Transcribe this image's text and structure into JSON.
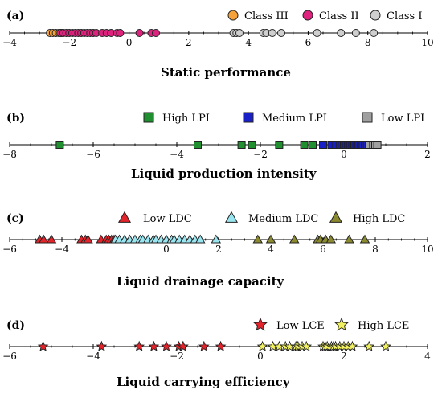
{
  "chart_data": [
    {
      "type": "scatter",
      "panel_label": "(a)",
      "title": "Static performance",
      "xlim": [
        -4,
        10
      ],
      "ticks": [
        -4,
        -2,
        0,
        2,
        4,
        6,
        8,
        10
      ],
      "tick_labels": [
        "−4",
        "−2",
        "0",
        "2",
        "4",
        "6",
        "8",
        "10"
      ],
      "marker": "circle",
      "legend_position": "top-right",
      "series": [
        {
          "name": "Class III",
          "color": "#f5a23a",
          "x": [
            -2.65,
            -2.55,
            -2.45,
            -2.35,
            -2.25
          ]
        },
        {
          "name": "Class II",
          "color": "#e0227f",
          "x": [
            -2.3,
            -2.2,
            -2.1,
            -2.0,
            -1.9,
            -1.8,
            -1.7,
            -1.6,
            -1.5,
            -1.4,
            -1.3,
            -1.2,
            -1.1,
            -0.9,
            -0.75,
            -0.6,
            -0.4,
            -0.3,
            0.35,
            0.75,
            0.9
          ]
        },
        {
          "name": "Class I",
          "color": "#cfcfcf",
          "x": [
            3.5,
            3.6,
            3.7,
            4.5,
            4.6,
            4.8,
            5.1,
            6.3,
            7.1,
            7.6,
            8.2
          ]
        }
      ]
    },
    {
      "type": "scatter",
      "panel_label": "(b)",
      "title": "Liquid production intensity",
      "xlim": [
        -8,
        2
      ],
      "ticks": [
        -8,
        -6,
        -4,
        -2,
        0,
        2
      ],
      "tick_labels": [
        "−8",
        "−6",
        "−4",
        "−2",
        "0",
        "2"
      ],
      "marker": "square",
      "legend_position": "top",
      "series": [
        {
          "name": "High LPI",
          "color": "#1f8f2f",
          "x": [
            -6.8,
            -3.5,
            -2.45,
            -2.2,
            -1.55,
            -0.95,
            -0.75
          ]
        },
        {
          "name": "Medium LPI",
          "color": "#1a20c8",
          "x": [
            -0.5,
            -0.3,
            -0.2,
            -0.1,
            -0.05,
            0.0,
            0.05,
            0.1,
            0.15,
            0.2,
            0.25,
            0.3,
            0.35,
            0.4,
            0.45,
            0.5,
            0.55
          ]
        },
        {
          "name": "Low LPI",
          "color": "#a0a0a0",
          "x": [
            0.6,
            0.7,
            0.75,
            0.8
          ]
        }
      ]
    },
    {
      "type": "scatter",
      "panel_label": "(c)",
      "title": "Liquid drainage capacity",
      "xlim": [
        -6,
        10
      ],
      "ticks": [
        -6,
        -4,
        -2,
        0,
        2,
        4,
        6,
        8,
        10
      ],
      "tick_labels": [
        "−6",
        "−4",
        "0",
        "2",
        "4",
        "6",
        "8",
        "10"
      ],
      "tick_values_shown": [
        -6,
        -4,
        0,
        2,
        4,
        6,
        8,
        10
      ],
      "marker": "triangle",
      "legend_position": "top",
      "series": [
        {
          "name": "Low LDC",
          "color": "#e3242b",
          "x": [
            -4.85,
            -4.7,
            -4.4,
            -3.25,
            -3.1,
            -3.0,
            -2.5,
            -2.3,
            -2.2,
            -2.1,
            -2.0
          ]
        },
        {
          "name": "Medium LDC",
          "color": "#9ae6f0",
          "x": [
            -1.95,
            -1.8,
            -1.6,
            -1.4,
            -1.2,
            -1.0,
            -0.9,
            -0.7,
            -0.5,
            -0.4,
            -0.2,
            0.0,
            0.2,
            0.3,
            0.5,
            0.7,
            0.9,
            1.1,
            1.3,
            1.9
          ]
        },
        {
          "name": "High LDC",
          "color": "#8c8a2e",
          "x": [
            3.5,
            4.0,
            4.9,
            5.8,
            5.9,
            6.1,
            6.3,
            7.0,
            7.6
          ]
        }
      ]
    },
    {
      "type": "scatter",
      "panel_label": "(d)",
      "title": "Liquid carrying efficiency",
      "xlim": [
        -6,
        4
      ],
      "ticks": [
        -6,
        -4,
        -2,
        0,
        2,
        4
      ],
      "tick_labels": [
        "−6",
        "−4",
        "−2",
        "0",
        "2",
        "4"
      ],
      "marker": "star",
      "legend_position": "top-right",
      "series": [
        {
          "name": "Low LCE",
          "color": "#e3242b",
          "x": [
            -5.2,
            -3.8,
            -2.9,
            -2.55,
            -2.25,
            -1.95,
            -1.85,
            -1.85,
            -1.35,
            -0.95
          ]
        },
        {
          "name": "High LCE",
          "color": "#f0f060",
          "x": [
            0.05,
            0.3,
            0.45,
            0.6,
            0.7,
            0.85,
            0.9,
            1.0,
            1.1,
            1.5,
            1.55,
            1.6,
            1.7,
            1.75,
            1.8,
            1.9,
            2.0,
            2.1,
            2.2,
            2.6,
            3.0
          ]
        }
      ]
    }
  ]
}
